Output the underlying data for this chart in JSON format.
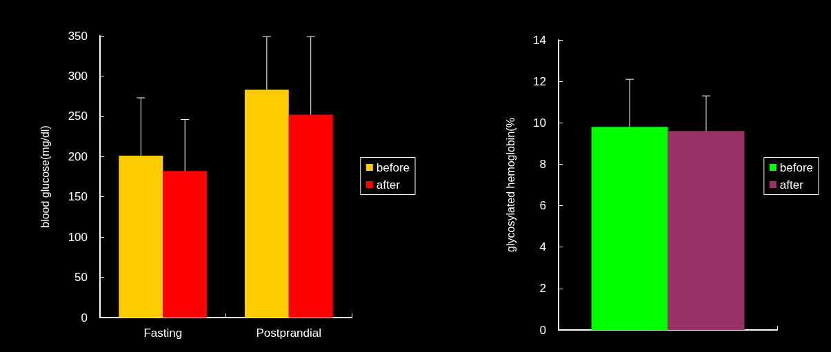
{
  "chart_data": [
    {
      "type": "bar",
      "ylabel": "blood glucose(mg/dl)",
      "categories": [
        "Fasting",
        "Postprandial"
      ],
      "series": [
        {
          "name": "before",
          "color": "#ffcc00",
          "values": [
            201,
            283
          ],
          "errors": [
            [
              201,
              273
            ],
            [
              283,
              349
            ]
          ]
        },
        {
          "name": "after",
          "color": "#ff0000",
          "values": [
            182,
            252
          ],
          "errors": [
            [
              182,
              246
            ],
            [
              252,
              349
            ]
          ]
        }
      ],
      "ylim": [
        0,
        350
      ],
      "yticks": [
        0,
        50,
        100,
        150,
        200,
        250,
        300,
        350
      ],
      "grid": false,
      "legend": "right"
    },
    {
      "type": "bar",
      "ylabel": "glycosylated hemoglobin(%",
      "categories": [
        null
      ],
      "series": [
        {
          "name": "before",
          "color": "#00ff00",
          "values": [
            9.8
          ],
          "errors": [
            [
              9.8,
              12.1
            ]
          ]
        },
        {
          "name": "after",
          "color": "#993366",
          "values": [
            9.6
          ],
          "errors": [
            [
              9.6,
              11.3
            ]
          ]
        }
      ],
      "ylim": [
        0,
        14
      ],
      "yticks": [
        0,
        2,
        4,
        6,
        8,
        10,
        12,
        14
      ],
      "grid": false,
      "legend": "right"
    }
  ]
}
